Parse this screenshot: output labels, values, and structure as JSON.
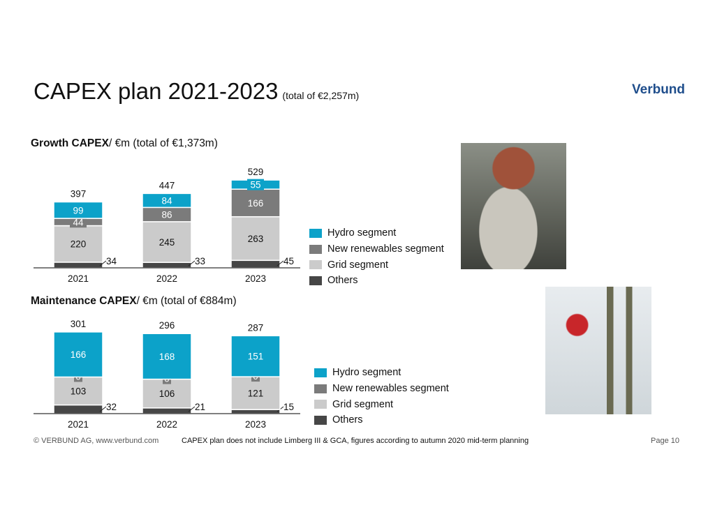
{
  "header": {
    "title": "CAPEX plan 2021-2023",
    "subtitle": "(total of €2,257m)",
    "logo": "Verbund"
  },
  "colors": {
    "hydro": "#0ca2c9",
    "new_renewables": "#7b7b7b",
    "grid": "#cbcbcb",
    "others": "#464646"
  },
  "chart_data": [
    {
      "type": "bar",
      "stacked": true,
      "title_bold": "Growth CAPEX",
      "title_rest": "/ €m (total of €1,373m)",
      "categories": [
        "2021",
        "2022",
        "2023"
      ],
      "series": [
        {
          "name": "Others",
          "values": [
            34,
            33,
            45
          ]
        },
        {
          "name": "Grid segment",
          "values": [
            220,
            245,
            263
          ]
        },
        {
          "name": "New renewables segment",
          "values": [
            44,
            86,
            166
          ]
        },
        {
          "name": "Hydro segment",
          "values": [
            99,
            84,
            55
          ]
        }
      ],
      "totals": [
        397,
        447,
        529
      ],
      "legend": "right"
    },
    {
      "type": "bar",
      "stacked": true,
      "title_bold": "Maintenance CAPEX",
      "title_rest": "/ €m (total of €884m)",
      "categories": [
        "2021",
        "2022",
        "2023"
      ],
      "series": [
        {
          "name": "Others",
          "values": [
            32,
            21,
            15
          ]
        },
        {
          "name": "Grid segment",
          "values": [
            103,
            106,
            121
          ]
        },
        {
          "name": "New renewables segment",
          "values": [
            0,
            0,
            0
          ]
        },
        {
          "name": "Hydro segment",
          "values": [
            166,
            168,
            151
          ]
        }
      ],
      "totals": [
        301,
        296,
        287
      ],
      "legend": "right"
    }
  ],
  "legend": [
    "Hydro segment",
    "New renewables segment",
    "Grid segment",
    "Others"
  ],
  "footer": {
    "copyright": "© VERBUND AG, www.verbund.com",
    "note": "CAPEX plan does not include Limberg III & GCA, figures according to autumn 2020 mid-term planning",
    "page": "Page 10"
  }
}
